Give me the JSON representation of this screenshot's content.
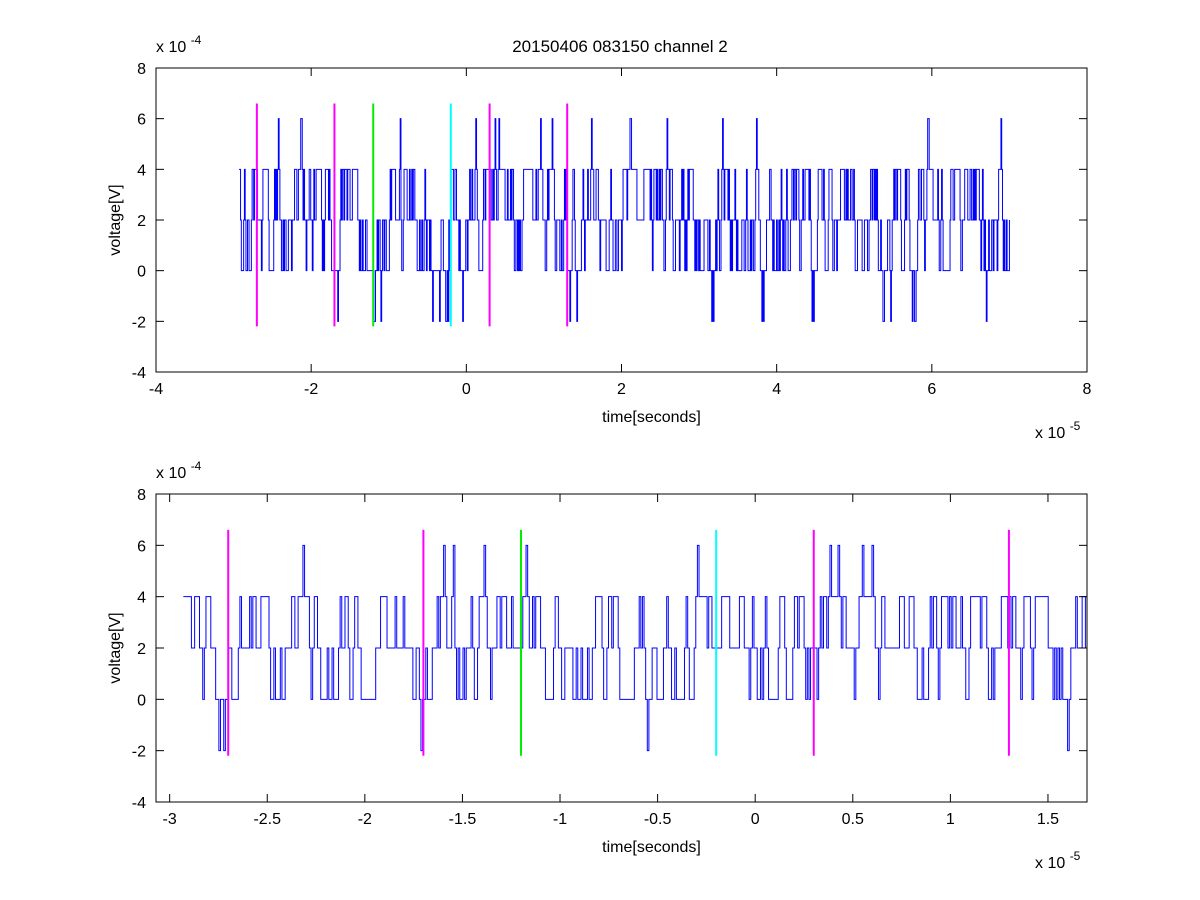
{
  "figure_title": "20150406 083150 channel 2",
  "chart_data": [
    {
      "type": "line",
      "title": "20150406 083150 channel 2",
      "xlabel": "time[seconds]",
      "ylabel": "voltage[V]",
      "x_exponent_label": "x 10",
      "x_exponent": "-5",
      "y_exponent_label": "x 10",
      "y_exponent": "-4",
      "xlim": [
        -4,
        8
      ],
      "ylim": [
        -4,
        8
      ],
      "xticks": [
        -4,
        -2,
        0,
        2,
        4,
        6,
        8
      ],
      "xtick_labels": [
        "-4",
        "-2",
        "0",
        "2",
        "4",
        "6",
        "8"
      ],
      "yticks": [
        -4,
        -2,
        0,
        2,
        4,
        6,
        8
      ],
      "ytick_labels": [
        "-4",
        "-2",
        "0",
        "2",
        "4",
        "6",
        "8"
      ],
      "grid": false,
      "series": [
        {
          "color": "#0000ff",
          "x_start": -2.93,
          "x_end": 7.0,
          "levels": [
            -2,
            0,
            2,
            4,
            6
          ],
          "seed": 17,
          "samples": 1000,
          "random_trace": true
        }
      ],
      "markers": [
        {
          "x": -2.7,
          "color": "#ff00ff",
          "y_range": [
            -2.2,
            6.6
          ]
        },
        {
          "x": -1.7,
          "color": "#ff00ff",
          "y_range": [
            -2.2,
            6.6
          ]
        },
        {
          "x": -1.2,
          "color": "#00ee00",
          "y_range": [
            -2.2,
            6.6
          ]
        },
        {
          "x": -0.2,
          "color": "#00ffff",
          "y_range": [
            -2.2,
            6.6
          ]
        },
        {
          "x": 0.3,
          "color": "#ff00ff",
          "y_range": [
            -2.2,
            6.6
          ]
        },
        {
          "x": 1.3,
          "color": "#ff00ff",
          "y_range": [
            -2.2,
            6.6
          ]
        }
      ]
    },
    {
      "type": "line",
      "title": "",
      "xlabel": "time[seconds]",
      "ylabel": "voltage[V]",
      "x_exponent_label": "x 10",
      "x_exponent": "-5",
      "y_exponent_label": "x 10",
      "y_exponent": "-4",
      "xlim": [
        -3.07,
        1.7
      ],
      "ylim": [
        -4,
        8
      ],
      "xticks": [
        -3,
        -2.5,
        -2,
        -1.5,
        -1,
        -0.5,
        0,
        0.5,
        1,
        1.5
      ],
      "xtick_labels": [
        "-3",
        "-2.5",
        "-2",
        "-1.5",
        "-1",
        "-0.5",
        "0",
        "0.5",
        "1",
        "1.5"
      ],
      "yticks": [
        -4,
        -2,
        0,
        2,
        4,
        6,
        8
      ],
      "ytick_labels": [
        "-4",
        "-2",
        "0",
        "2",
        "4",
        "6",
        "8"
      ],
      "grid": false,
      "series": [
        {
          "color": "#0000ff",
          "x_start": -2.93,
          "x_end": 1.7,
          "levels": [
            -2,
            0,
            2,
            4,
            6
          ],
          "seed": 29,
          "samples": 560,
          "random_trace": true
        }
      ],
      "markers": [
        {
          "x": -2.7,
          "color": "#ff00ff",
          "y_range": [
            -2.2,
            6.6
          ]
        },
        {
          "x": -1.7,
          "color": "#ff00ff",
          "y_range": [
            -2.2,
            6.6
          ]
        },
        {
          "x": -1.2,
          "color": "#00ee00",
          "y_range": [
            -2.2,
            6.6
          ]
        },
        {
          "x": -0.2,
          "color": "#00ffff",
          "y_range": [
            -2.2,
            6.6
          ]
        },
        {
          "x": 0.3,
          "color": "#ff00ff",
          "y_range": [
            -2.2,
            6.6
          ]
        },
        {
          "x": 1.3,
          "color": "#ff00ff",
          "y_range": [
            -2.2,
            6.6
          ]
        }
      ]
    }
  ]
}
